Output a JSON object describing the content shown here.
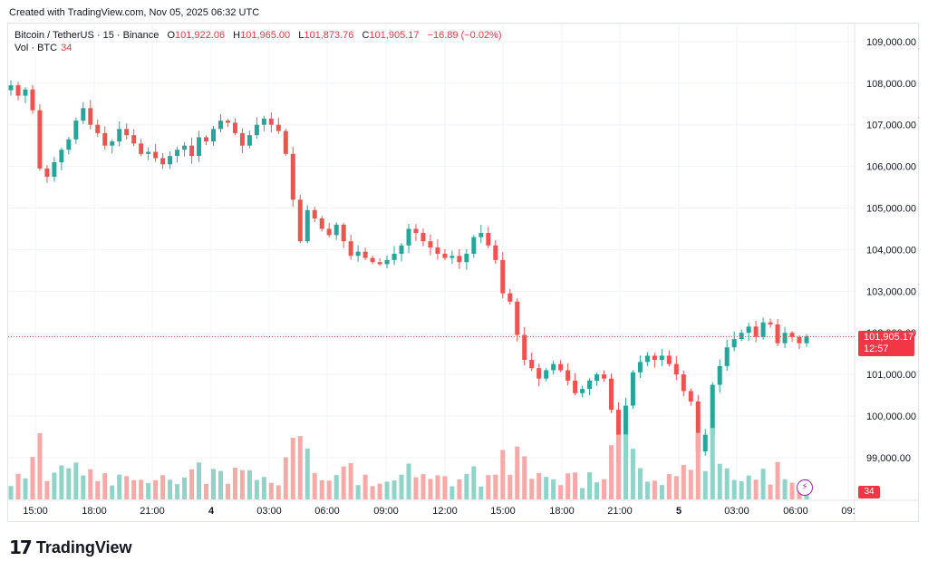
{
  "caption": "Created with TradingView.com, Nov 05, 2025 06:32 UTC",
  "legend": {
    "symbol": "Bitcoin / TetherUS · 15 · Binance",
    "o_label": "O",
    "o": "101,922.06",
    "h_label": "H",
    "h": "101,965.00",
    "l_label": "L",
    "l": "101,873.76",
    "c_label": "C",
    "c": "101,905.17",
    "change": "−16.89 (−0.02%)",
    "vol_label": "Vol · BTC",
    "vol_value": "34"
  },
  "price_tag": {
    "price": "101,905.17",
    "countdown": "12:57"
  },
  "vol_tag": "34",
  "brand": "TradingView",
  "colors": {
    "up": "#26a69a",
    "down": "#ef5350",
    "grid": "#f0f3fa"
  },
  "chart_data": {
    "type": "candlestick",
    "y_axis_ticks": [
      "99,000.00",
      "100,000.00",
      "101,000.00",
      "102,000.00",
      "103,000.00",
      "104,000.00",
      "105,000.00",
      "106,000.00",
      "107,000.00",
      "108,000.00",
      "109,000.00"
    ],
    "ylim": [
      98400,
      109400
    ],
    "x_axis_ticks": [
      "15:00",
      "18:00",
      "21:00",
      "4",
      "03:00",
      "06:00",
      "09:00",
      "12:00",
      "15:00",
      "18:00",
      "21:00",
      "5",
      "03:00",
      "06:00",
      "09:"
    ],
    "last_price": 101905.17,
    "close_path": [
      107950,
      107700,
      107850,
      107350,
      105950,
      105750,
      106100,
      106400,
      106650,
      107100,
      107400,
      107000,
      106800,
      106500,
      106600,
      106900,
      106750,
      106550,
      106300,
      106350,
      106200,
      106050,
      106250,
      106400,
      106500,
      106250,
      106700,
      106600,
      106900,
      107100,
      107050,
      106800,
      106500,
      106750,
      107000,
      107150,
      107000,
      106850,
      106300,
      105200,
      104200,
      104950,
      104750,
      104500,
      104350,
      104600,
      104200,
      103850,
      103950,
      103800,
      103700,
      103650,
      103750,
      103900,
      104100,
      104500,
      104400,
      104200,
      104050,
      103900,
      103800,
      103850,
      103700,
      103900,
      104300,
      104400,
      104100,
      103750,
      102950,
      102750,
      101950,
      101350,
      101150,
      100900,
      101100,
      101250,
      101100,
      100850,
      100550,
      100650,
      100850,
      101000,
      100900,
      100150,
      99150,
      100250,
      101050,
      101300,
      101450,
      101350,
      101450,
      101250,
      101000,
      100600,
      100350,
      99150,
      99550,
      100750,
      101200,
      101650,
      101850,
      102000,
      102150,
      101900,
      102250,
      102200,
      101750,
      102000,
      101900,
      101750,
      101920
    ]
  }
}
